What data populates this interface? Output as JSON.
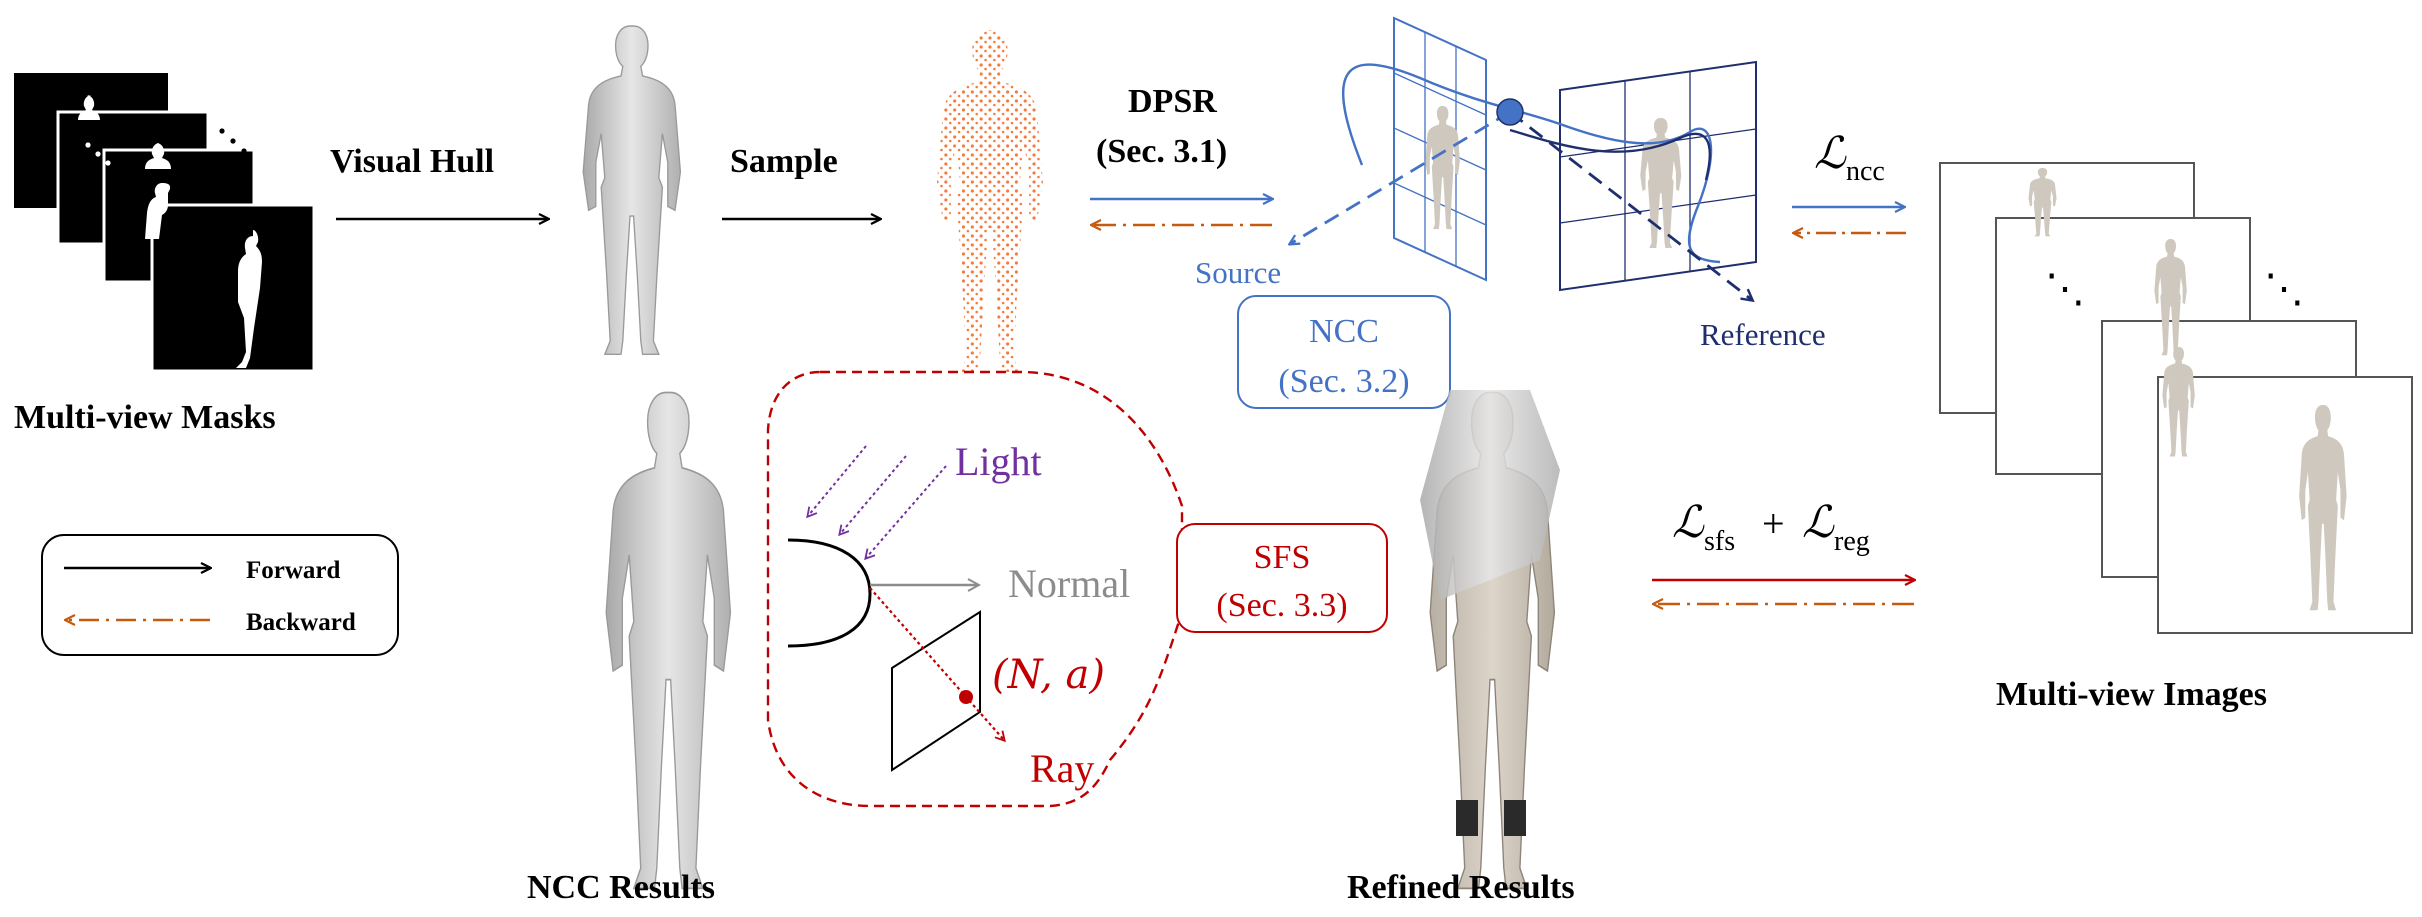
{
  "colors": {
    "black": "#000000",
    "blue": "#4472c4",
    "dark_blue": "#1f2f6e",
    "orange": "#c55a11",
    "red": "#c00000",
    "purple": "#7030a0",
    "gray": "#8c8c8c",
    "mesh_gray": "#c9c9c9",
    "points": "#f47a3c",
    "skin": "#d8cfc4"
  },
  "labels": {
    "multi_view_masks": "Multi-view Masks",
    "visual_hull": "Visual Hull",
    "sample": "Sample",
    "dpsr": "DPSR",
    "dpsr_sec": "(Sec. 3.1)",
    "source": "Source",
    "reference": "Reference",
    "ncc": "NCC",
    "ncc_sec": "(Sec. 3.2)",
    "loss_ncc_symbol": "ℒ",
    "loss_ncc_sub": "ncc",
    "multi_view_images": "Multi-view Images",
    "ncc_results": "NCC Results",
    "refined_results": "Refined Results",
    "light": "Light",
    "normal": "Normal",
    "n_a": "(N, a)",
    "ray": "Ray",
    "sfs": "SFS",
    "sfs_sec": "(Sec. 3.3)",
    "loss_sfs_symbol": "ℒ",
    "loss_sfs_sub": "sfs",
    "plus": "+",
    "loss_reg_symbol": "ℒ",
    "loss_reg_sub": "reg",
    "ellipsis": "⋱"
  },
  "legend": {
    "forward": "Forward",
    "backward": "Backward"
  },
  "icons": {
    "masks": "mask-stack-icon",
    "hull": "visual-hull-mesh-icon",
    "points": "point-cloud-icon",
    "planes": "camera-planes-icon"
  }
}
